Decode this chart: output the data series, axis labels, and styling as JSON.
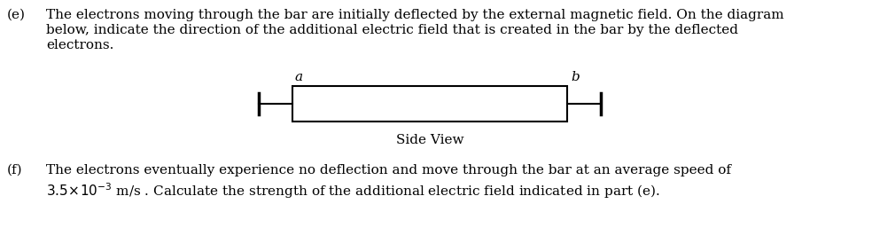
{
  "background_color": "#ffffff",
  "fig_width": 9.84,
  "fig_height": 2.83,
  "dpi": 100,
  "text_color": "#000000",
  "part_e_label": "(e)",
  "part_e_line1": "The electrons moving through the bar are initially deflected by the external magnetic field. On the diagram",
  "part_e_line2": "below, indicate the direction of the additional electric field that is created in the bar by the deflected",
  "part_e_line3": "electrons.",
  "part_f_label": "(f)",
  "part_f_line1": "The electrons eventually experience no deflection and move through the bar at an average speed of",
  "part_f_line2_suffix": " m/s . Calculate the strength of the additional electric field indicated in part (e).",
  "side_view_label": "Side View",
  "label_a": "a",
  "label_b": "b",
  "font_size_main": 11.0,
  "font_family": "serif"
}
